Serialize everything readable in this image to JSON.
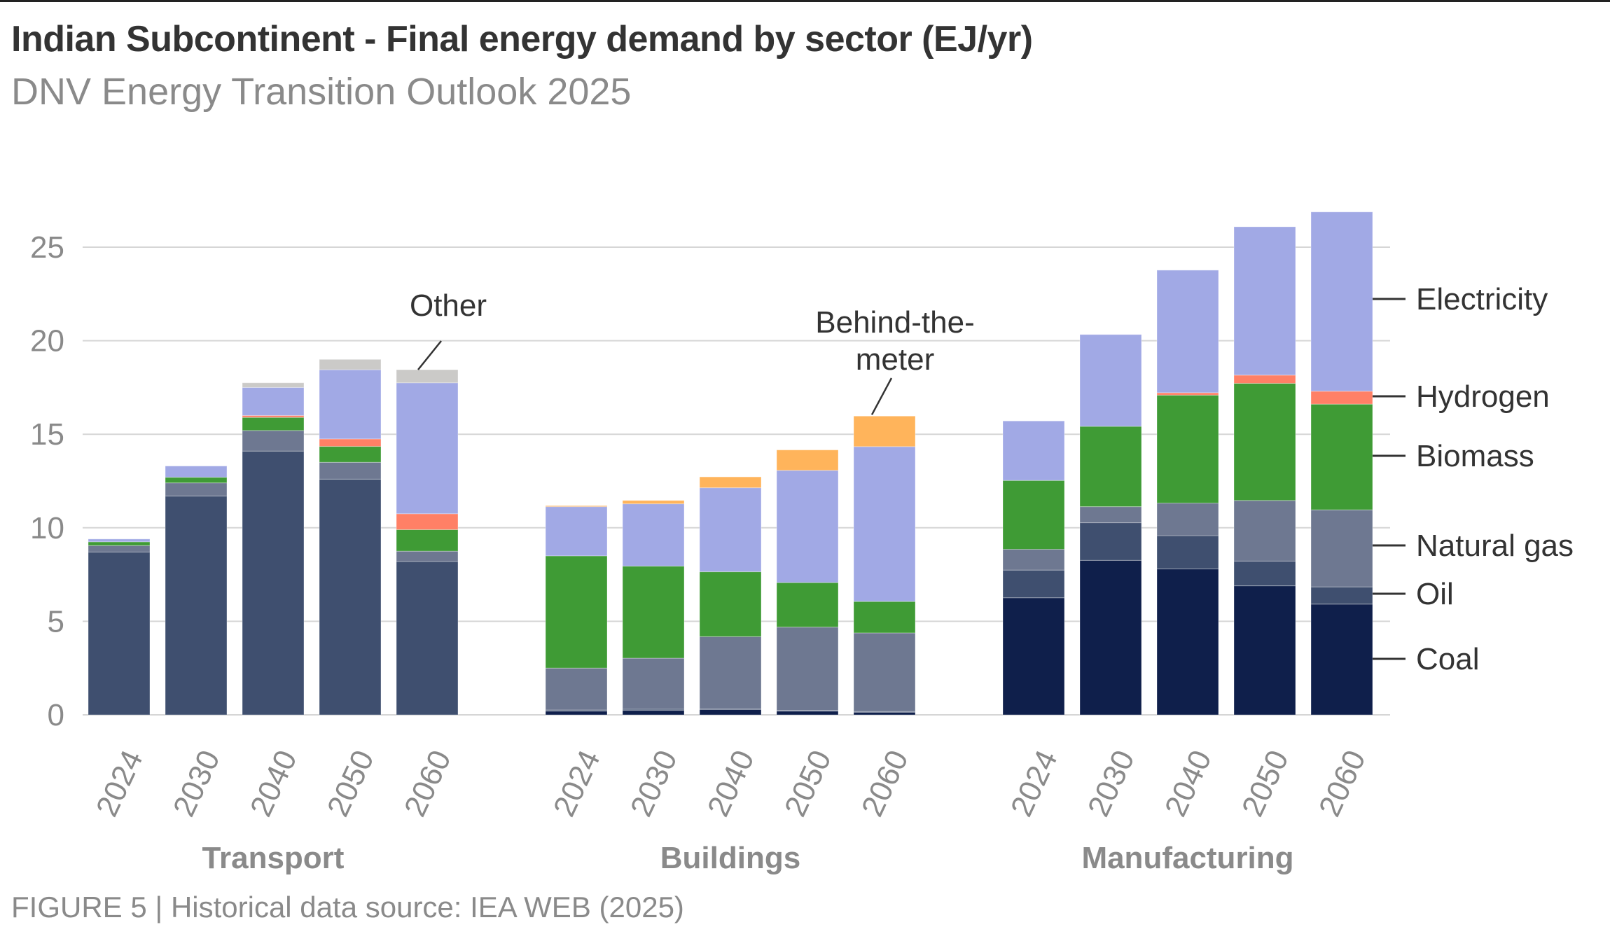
{
  "header": {
    "title": "Indian Subcontinent - Final energy demand by sector (EJ/yr)",
    "subtitle": "DNV Energy Transition Outlook 2025"
  },
  "footer": {
    "text": "FIGURE 5 | Historical data source: IEA WEB (2025)"
  },
  "chart_data": {
    "type": "bar",
    "stacked": true,
    "title": "Indian Subcontinent - Final energy demand by sector (EJ/yr)",
    "subtitle": "DNV Energy Transition Outlook 2025",
    "xlabel": "",
    "ylabel": "EJ/yr",
    "ylim": [
      0,
      27
    ],
    "yticks": [
      0,
      5,
      10,
      15,
      20,
      25
    ],
    "grid": true,
    "legend_placement": "right (inline labels)",
    "groups": [
      "Transport",
      "Buildings",
      "Manufacturing"
    ],
    "categories": [
      "2024",
      "2030",
      "2040",
      "2050",
      "2060"
    ],
    "series_order": [
      "Coal",
      "Oil",
      "Natural gas",
      "Biomass",
      "Hydrogen",
      "Electricity",
      "Behind-the-meter",
      "Other"
    ],
    "colors": {
      "Coal": "#0f1f4b",
      "Oil": "#3f4f6f",
      "Natural gas": "#6e7891",
      "Biomass": "#3f9b35",
      "Hydrogen": "#ff8066",
      "Electricity": "#a1a9e5",
      "Behind-the-meter": "#ffb45b",
      "Other": "#cbcac8"
    },
    "data": {
      "Transport": {
        "Coal": [
          0.0,
          0.0,
          0.0,
          0.0,
          0.0
        ],
        "Oil": [
          8.7,
          11.7,
          14.1,
          12.6,
          8.2
        ],
        "Natural gas": [
          0.35,
          0.7,
          1.1,
          0.9,
          0.55
        ],
        "Biomass": [
          0.2,
          0.3,
          0.7,
          0.85,
          1.15
        ],
        "Hydrogen": [
          0.0,
          0.0,
          0.1,
          0.4,
          0.85
        ],
        "Electricity": [
          0.15,
          0.6,
          1.5,
          3.7,
          7.0
        ],
        "Behind-the-meter": [
          0.0,
          0.0,
          0.0,
          0.0,
          0.0
        ],
        "Other": [
          0.0,
          0.0,
          0.25,
          0.55,
          0.7
        ]
      },
      "Buildings": {
        "Coal": [
          0.2,
          0.24,
          0.29,
          0.2,
          0.14
        ],
        "Oil": [
          0.06,
          0.06,
          0.02,
          0.04,
          0.04
        ],
        "Natural gas": [
          2.24,
          2.73,
          3.87,
          4.45,
          4.2
        ],
        "Biomass": [
          6.0,
          4.92,
          3.47,
          2.38,
          1.68
        ],
        "Hydrogen": [
          0.0,
          0.0,
          0.0,
          0.0,
          0.0
        ],
        "Electricity": [
          2.63,
          3.33,
          4.49,
          6.0,
          8.28
        ],
        "Behind-the-meter": [
          0.05,
          0.18,
          0.58,
          1.09,
          1.63
        ],
        "Other": [
          0.0,
          0.0,
          0.0,
          0.0,
          0.0
        ]
      },
      "Manufacturing": {
        "Coal": [
          6.26,
          8.26,
          7.8,
          6.9,
          5.92
        ],
        "Oil": [
          1.48,
          2.01,
          1.78,
          1.32,
          0.92
        ],
        "Natural gas": [
          1.11,
          0.86,
          1.74,
          3.24,
          4.12
        ],
        "Biomass": [
          3.68,
          4.29,
          5.77,
          6.26,
          5.65
        ],
        "Hydrogen": [
          0.0,
          0.0,
          0.13,
          0.44,
          0.69
        ],
        "Electricity": [
          3.18,
          4.91,
          6.55,
          7.93,
          9.58
        ],
        "Behind-the-meter": [
          0.0,
          0.0,
          0.0,
          0.0,
          0.0
        ],
        "Other": [
          0.0,
          0.0,
          0.0,
          0.0,
          0.0
        ]
      }
    },
    "totals": {
      "Transport": [
        9.4,
        13.3,
        17.75,
        19.0,
        18.45
      ],
      "Buildings": [
        11.18,
        11.46,
        12.72,
        14.16,
        15.97
      ],
      "Manufacturing": [
        15.71,
        20.33,
        23.77,
        26.09,
        26.88
      ]
    },
    "legend": [
      "Electricity",
      "Hydrogen",
      "Biomass",
      "Natural gas",
      "Oil",
      "Coal"
    ],
    "annotations": [
      {
        "text": "Other",
        "target_group": "Transport",
        "target_year": "2060"
      },
      {
        "text": "Behind-the-meter",
        "lines": [
          "Behind-the-",
          "meter"
        ],
        "target_group": "Buildings",
        "target_year": "2060"
      }
    ]
  }
}
